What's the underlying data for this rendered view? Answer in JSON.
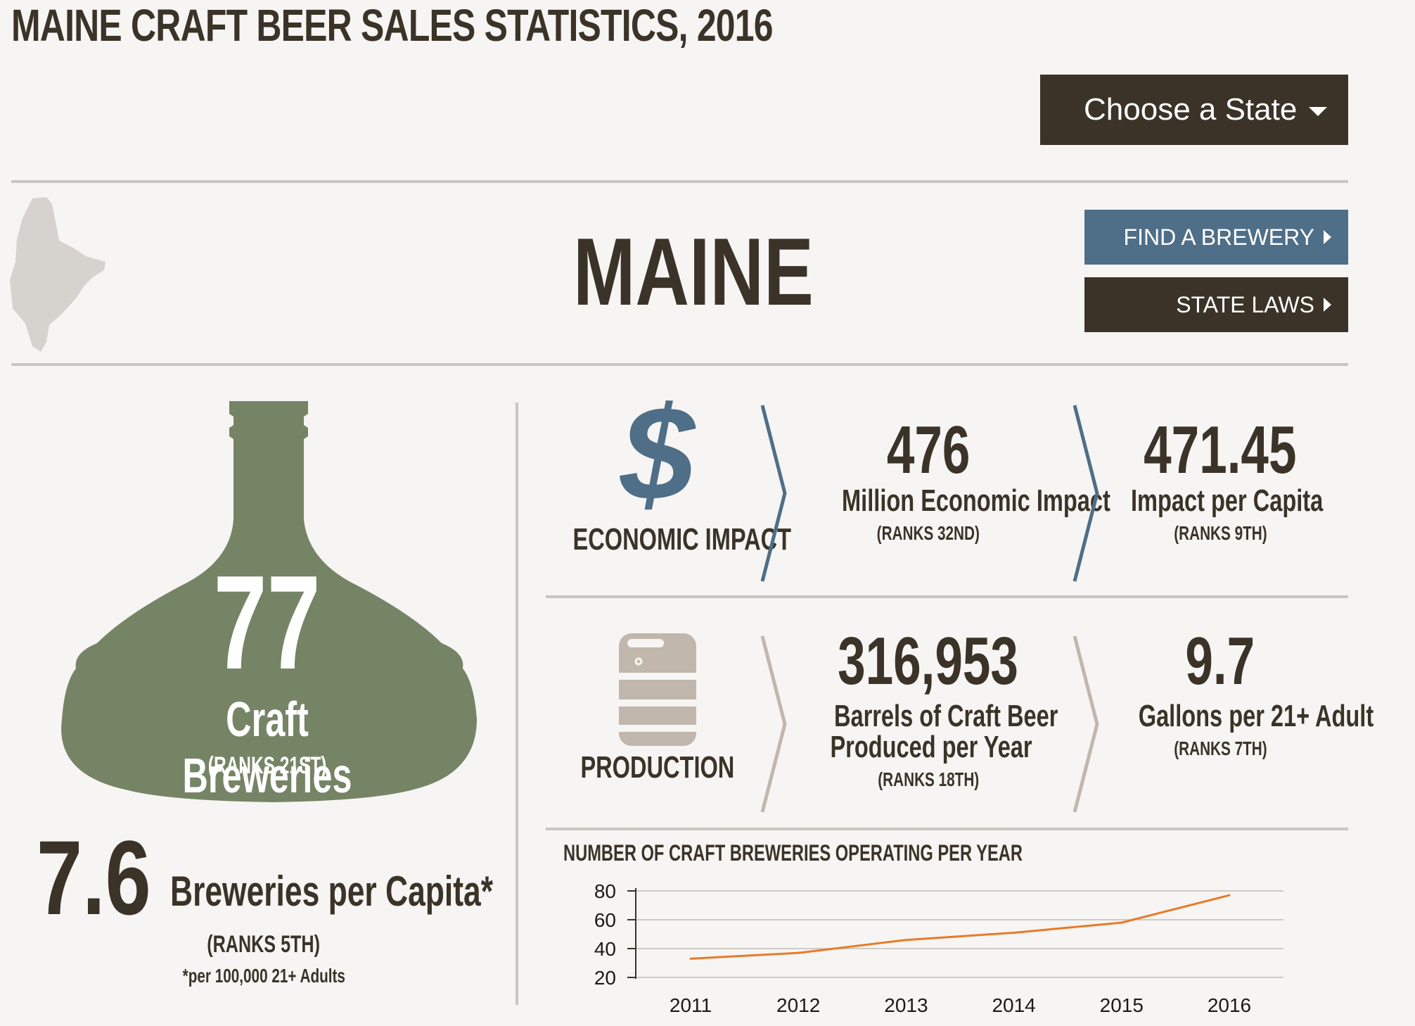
{
  "header": {
    "title": "MAINE CRAFT BEER SALES STATISTICS, 2016"
  },
  "state_select": {
    "label": "Choose a State"
  },
  "state": {
    "name": "MAINE",
    "buttons": {
      "find_brewery": "FIND A BREWERY",
      "state_laws": "STATE LAWS"
    }
  },
  "breweries": {
    "count": "77",
    "label": "Craft Breweries",
    "rank": "(RANKS 21ST)",
    "per_capita_value": "7.6",
    "per_capita_label": "Breweries per Capita*",
    "per_capita_rank": "(RANKS 5TH)",
    "per_capita_note": "*per 100,000 21+ Adults"
  },
  "economic_impact": {
    "section_label": "ECONOMIC IMPACT",
    "total": {
      "value": "476",
      "label": "Million Economic Impact",
      "rank": "(RANKS 32ND)"
    },
    "per_capita": {
      "value": "471.45",
      "label": "Impact per Capita",
      "rank": "(RANKS 9TH)"
    }
  },
  "production": {
    "section_label": "PRODUCTION",
    "barrels": {
      "value": "316,953",
      "label_line1": "Barrels of Craft Beer",
      "label_line2": "Produced per Year",
      "rank": "(RANKS 18TH)"
    },
    "gallons": {
      "value": "9.7",
      "label": "Gallons per 21+ Adult",
      "rank": "(RANKS 7TH)"
    }
  },
  "colors": {
    "dark_brown": "#3b3327",
    "slate_blue": "#4f6e87",
    "kettle_green": "#758465",
    "line_orange": "#e87a2a",
    "rule_grey": "#c9c6c1"
  },
  "icons": {
    "state_map": "maine-map-icon",
    "dollar": "dollar-icon",
    "keg": "keg-icon",
    "kettle": "brew-kettle-icon"
  },
  "chart_data": {
    "type": "line",
    "title": "NUMBER OF CRAFT BREWERIES OPERATING PER YEAR",
    "x": [
      "2011",
      "2012",
      "2013",
      "2014",
      "2015",
      "2016"
    ],
    "series": [
      {
        "values": [
          33,
          37,
          46,
          51,
          58,
          77
        ]
      }
    ],
    "ylim": [
      20,
      80
    ],
    "yticks": [
      "20",
      "40",
      "60",
      "80"
    ],
    "grid": true,
    "xlabel": "",
    "ylabel": ""
  }
}
